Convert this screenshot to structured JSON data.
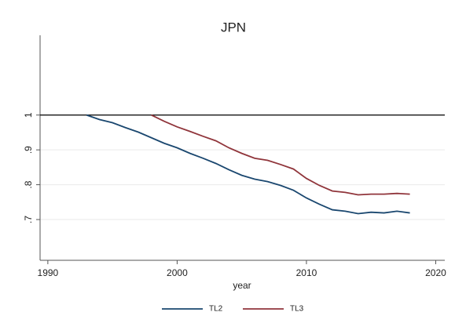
{
  "chart_data": {
    "type": "line",
    "title": "JPN",
    "x_label": "year",
    "x": [
      1993,
      1994,
      1995,
      1996,
      1997,
      1998,
      1999,
      2000,
      2001,
      2002,
      2003,
      2004,
      2005,
      2006,
      2007,
      2008,
      2009,
      2010,
      2011,
      2012,
      2013,
      2014,
      2015,
      2016,
      2017,
      2018
    ],
    "series": [
      {
        "name": "TL2",
        "color": "#1a476f",
        "values": [
          1.0,
          0.987,
          0.978,
          0.964,
          0.951,
          0.935,
          0.919,
          0.906,
          0.89,
          0.876,
          0.861,
          0.843,
          0.827,
          0.816,
          0.809,
          0.798,
          0.784,
          0.762,
          0.744,
          0.728,
          0.724,
          0.717,
          0.721,
          0.719,
          0.724,
          0.719
        ]
      },
      {
        "name": "TL3",
        "color": "#90353b",
        "values": [
          null,
          null,
          null,
          null,
          null,
          1.0,
          0.982,
          0.966,
          0.953,
          0.939,
          0.926,
          0.906,
          0.89,
          0.876,
          0.87,
          0.858,
          0.845,
          0.818,
          0.798,
          0.782,
          0.778,
          0.771,
          0.773,
          0.773,
          0.775,
          0.773
        ]
      }
    ],
    "xlim": [
      1989.4,
      2020.7
    ],
    "xticks": [
      1990,
      2000,
      2010,
      2020
    ],
    "ylim": [
      0.583,
      1.229
    ],
    "yticks": [
      {
        "value": 0.7,
        "label": ".7"
      },
      {
        "value": 0.8,
        "label": ".8"
      },
      {
        "value": 0.9,
        "label": ".9"
      },
      1
    ],
    "reference_line": 1,
    "grid": true,
    "legend": "bottom"
  }
}
